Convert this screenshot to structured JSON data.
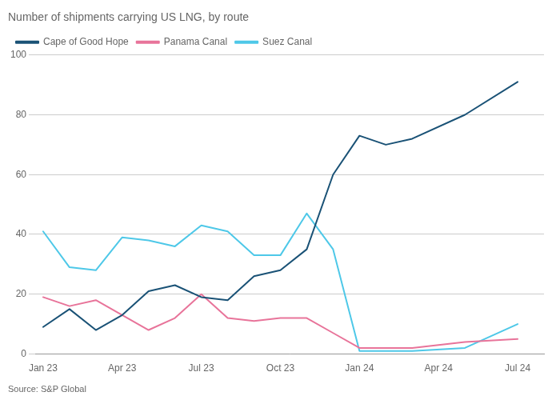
{
  "chart_data": {
    "type": "line",
    "title": "Number of shipments carrying US LNG, by route",
    "source": "Source: S&P Global",
    "x": [
      0,
      1,
      2,
      3,
      4,
      5,
      6,
      7,
      8,
      9,
      10,
      11,
      12,
      13,
      14,
      16,
      18
    ],
    "series": [
      {
        "name": "Cape of Good Hope",
        "color": "#1a5276",
        "values": [
          9,
          15,
          8,
          13,
          21,
          23,
          19,
          18,
          26,
          28,
          35,
          60,
          73,
          70,
          72,
          80,
          91
        ]
      },
      {
        "name": "Panama Canal",
        "color": "#e8749a",
        "values": [
          19,
          16,
          18,
          13,
          8,
          12,
          20,
          12,
          11,
          12,
          12,
          7,
          2,
          2,
          2,
          4,
          5
        ]
      },
      {
        "name": "Suez Canal",
        "color": "#4ec8e8",
        "values": [
          41,
          29,
          28,
          39,
          38,
          36,
          43,
          41,
          33,
          33,
          47,
          35,
          1,
          1,
          1,
          2,
          10
        ]
      }
    ],
    "xlim": [
      -0.3,
      19
    ],
    "xticks": [
      {
        "value": 0,
        "label": "Jan 23"
      },
      {
        "value": 3,
        "label": "Apr 23"
      },
      {
        "value": 6,
        "label": "Jul 23"
      },
      {
        "value": 9,
        "label": "Oct 23"
      },
      {
        "value": 12,
        "label": "Jan 24"
      },
      {
        "value": 15,
        "label": "Apr 24"
      },
      {
        "value": 18,
        "label": "Jul 24"
      }
    ],
    "ylim": [
      0,
      100
    ],
    "yticks": [
      0,
      20,
      40,
      60,
      80,
      100
    ],
    "grid": "y",
    "legend": "top"
  }
}
